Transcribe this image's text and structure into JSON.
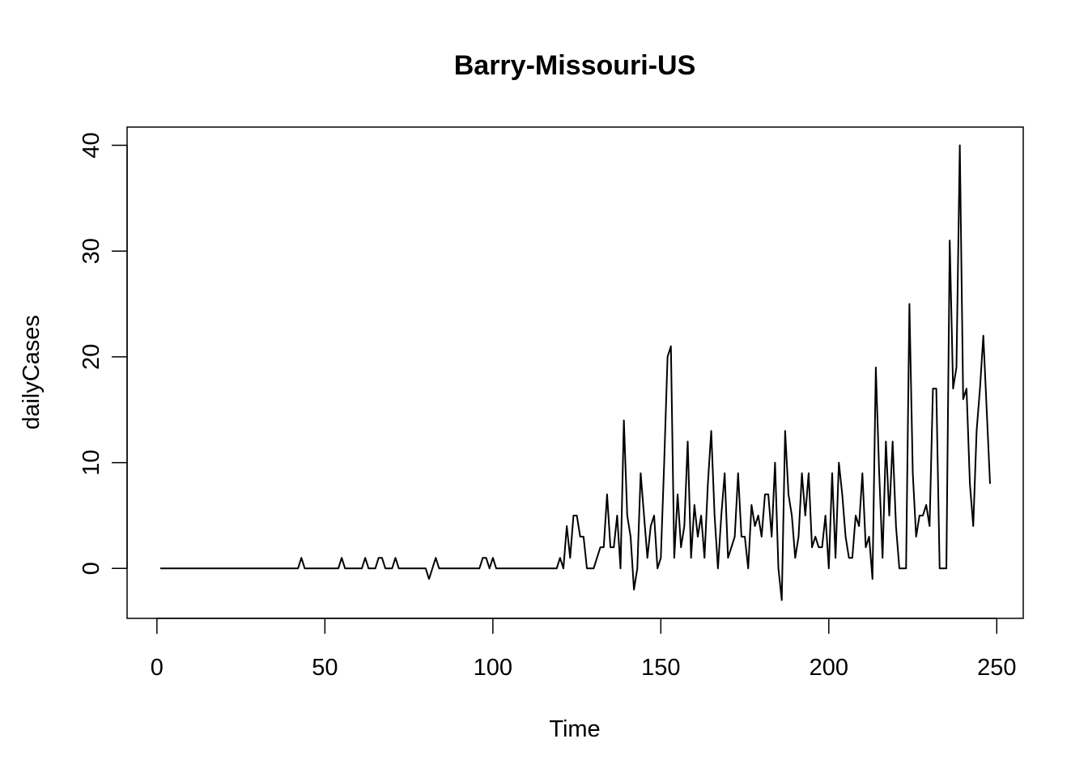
{
  "chart_data": {
    "type": "line",
    "title": "Barry-Missouri-US",
    "xlabel": "Time",
    "ylabel": "dailyCases",
    "xlim": [
      1,
      248
    ],
    "ylim": [
      -3,
      40
    ],
    "xticks": [
      0,
      50,
      100,
      150,
      200,
      250
    ],
    "yticks": [
      0,
      10,
      20,
      30,
      40
    ],
    "grid": false,
    "series": [
      {
        "color": "#000000",
        "x_start": 1,
        "values": [
          0,
          0,
          0,
          0,
          0,
          0,
          0,
          0,
          0,
          0,
          0,
          0,
          0,
          0,
          0,
          0,
          0,
          0,
          0,
          0,
          0,
          0,
          0,
          0,
          0,
          0,
          0,
          0,
          0,
          0,
          0,
          0,
          0,
          0,
          0,
          0,
          0,
          0,
          0,
          0,
          0,
          0,
          1,
          0,
          0,
          0,
          0,
          0,
          0,
          0,
          0,
          0,
          0,
          0,
          1,
          0,
          0,
          0,
          0,
          0,
          0,
          1,
          0,
          0,
          0,
          1,
          1,
          0,
          0,
          0,
          1,
          0,
          0,
          0,
          0,
          0,
          0,
          0,
          0,
          0,
          -1,
          0,
          1,
          0,
          0,
          0,
          0,
          0,
          0,
          0,
          0,
          0,
          0,
          0,
          0,
          0,
          1,
          1,
          0,
          1,
          0,
          0,
          0,
          0,
          0,
          0,
          0,
          0,
          0,
          0,
          0,
          0,
          0,
          0,
          0,
          0,
          0,
          0,
          0,
          1,
          0,
          4,
          1,
          5,
          5,
          3,
          3,
          0,
          0,
          0,
          1,
          2,
          2,
          7,
          2,
          2,
          5,
          0,
          14,
          5,
          3,
          -2,
          0,
          9,
          5,
          1,
          4,
          5,
          0,
          1,
          10,
          20,
          21,
          1,
          7,
          2,
          4,
          12,
          1,
          6,
          3,
          5,
          1,
          8,
          13,
          5,
          0,
          5,
          9,
          1,
          2,
          3,
          9,
          3,
          3,
          0,
          6,
          4,
          5,
          3,
          7,
          7,
          3,
          10,
          0,
          -3,
          13,
          7,
          5,
          1,
          3,
          9,
          5,
          9,
          2,
          3,
          2,
          2,
          5,
          0,
          9,
          1,
          10,
          7,
          3,
          1,
          1,
          5,
          4,
          9,
          2,
          3,
          -1,
          19,
          9,
          1,
          12,
          5,
          12,
          4,
          0,
          0,
          0,
          25,
          9,
          3,
          5,
          5,
          6,
          4,
          17,
          17,
          0,
          0,
          0,
          31,
          17,
          19,
          40,
          16,
          17,
          8,
          4,
          13,
          17,
          22,
          15,
          8
        ]
      }
    ]
  }
}
